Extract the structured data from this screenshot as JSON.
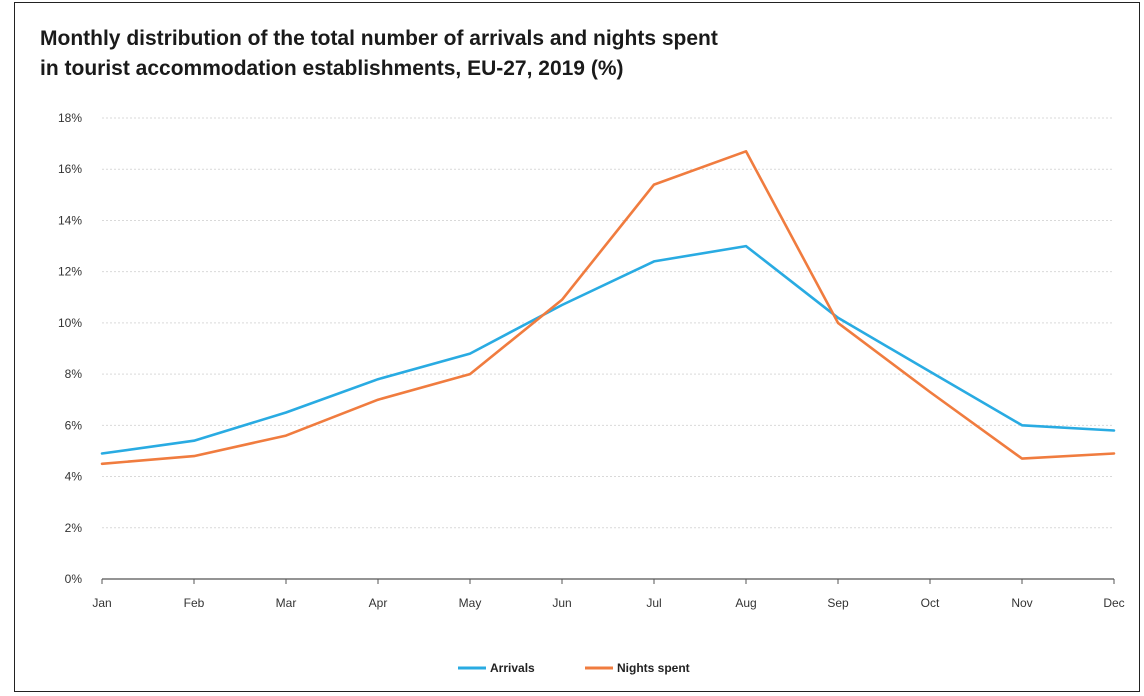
{
  "chart_data": {
    "type": "line",
    "title": "Monthly distribution of the total number of arrivals and nights spent in tourist accommodation establishments, EU-27, 2019 (%)",
    "title_lines": [
      "Monthly distribution of the total number of arrivals and nights spent",
      "in tourist accommodation establishments, EU-27, 2019 (%)"
    ],
    "categories": [
      "Jan",
      "Feb",
      "Mar",
      "Apr",
      "May",
      "Jun",
      "Jul",
      "Aug",
      "Sep",
      "Oct",
      "Nov",
      "Dec"
    ],
    "series": [
      {
        "name": "Arrivals",
        "color": "#29abe2",
        "values": [
          4.9,
          5.4,
          6.5,
          7.8,
          8.8,
          10.7,
          12.4,
          13.0,
          10.2,
          8.1,
          6.0,
          5.8
        ]
      },
      {
        "name": "Nights spent",
        "color": "#f07c3f",
        "values": [
          4.5,
          4.8,
          5.6,
          7.0,
          8.0,
          10.9,
          15.4,
          16.7,
          10.0,
          7.3,
          4.7,
          4.9
        ]
      }
    ],
    "y_ticks": [
      "0%",
      "2%",
      "4%",
      "6%",
      "8%",
      "10%",
      "12%",
      "14%",
      "16%",
      "18%"
    ],
    "ylim": [
      0,
      18
    ],
    "xlabel": "",
    "ylabel": "",
    "grid": true,
    "legend_position": "bottom"
  }
}
